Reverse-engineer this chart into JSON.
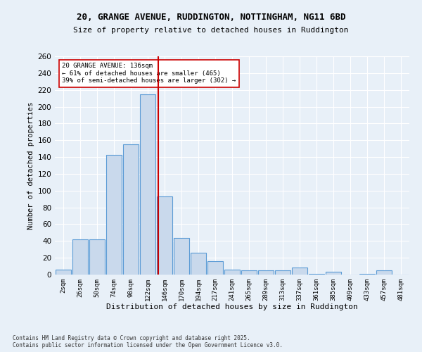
{
  "title1": "20, GRANGE AVENUE, RUDDINGTON, NOTTINGHAM, NG11 6BD",
  "title2": "Size of property relative to detached houses in Ruddington",
  "xlabel": "Distribution of detached houses by size in Ruddington",
  "ylabel": "Number of detached properties",
  "bar_labels": [
    "2sqm",
    "26sqm",
    "50sqm",
    "74sqm",
    "98sqm",
    "122sqm",
    "146sqm",
    "170sqm",
    "194sqm",
    "217sqm",
    "241sqm",
    "265sqm",
    "289sqm",
    "313sqm",
    "337sqm",
    "361sqm",
    "385sqm",
    "409sqm",
    "433sqm",
    "457sqm",
    "481sqm"
  ],
  "bar_values": [
    6,
    42,
    42,
    143,
    155,
    215,
    93,
    44,
    26,
    16,
    6,
    5,
    5,
    5,
    8,
    1,
    3,
    0,
    1,
    5,
    0
  ],
  "bar_color": "#c9d9ec",
  "bar_edge_color": "#5b9bd5",
  "vline_x": 5.61,
  "vline_color": "#cc0000",
  "annotation_title": "20 GRANGE AVENUE: 136sqm",
  "annotation_line1": "← 61% of detached houses are smaller (465)",
  "annotation_line2": "39% of semi-detached houses are larger (302) →",
  "annotation_box_color": "#ffffff",
  "annotation_box_edge": "#cc0000",
  "ylim": [
    0,
    260
  ],
  "yticks": [
    0,
    20,
    40,
    60,
    80,
    100,
    120,
    140,
    160,
    180,
    200,
    220,
    240,
    260
  ],
  "background_color": "#e8f0f8",
  "grid_color": "#ffffff",
  "footnote1": "Contains HM Land Registry data © Crown copyright and database right 2025.",
  "footnote2": "Contains public sector information licensed under the Open Government Licence v3.0."
}
